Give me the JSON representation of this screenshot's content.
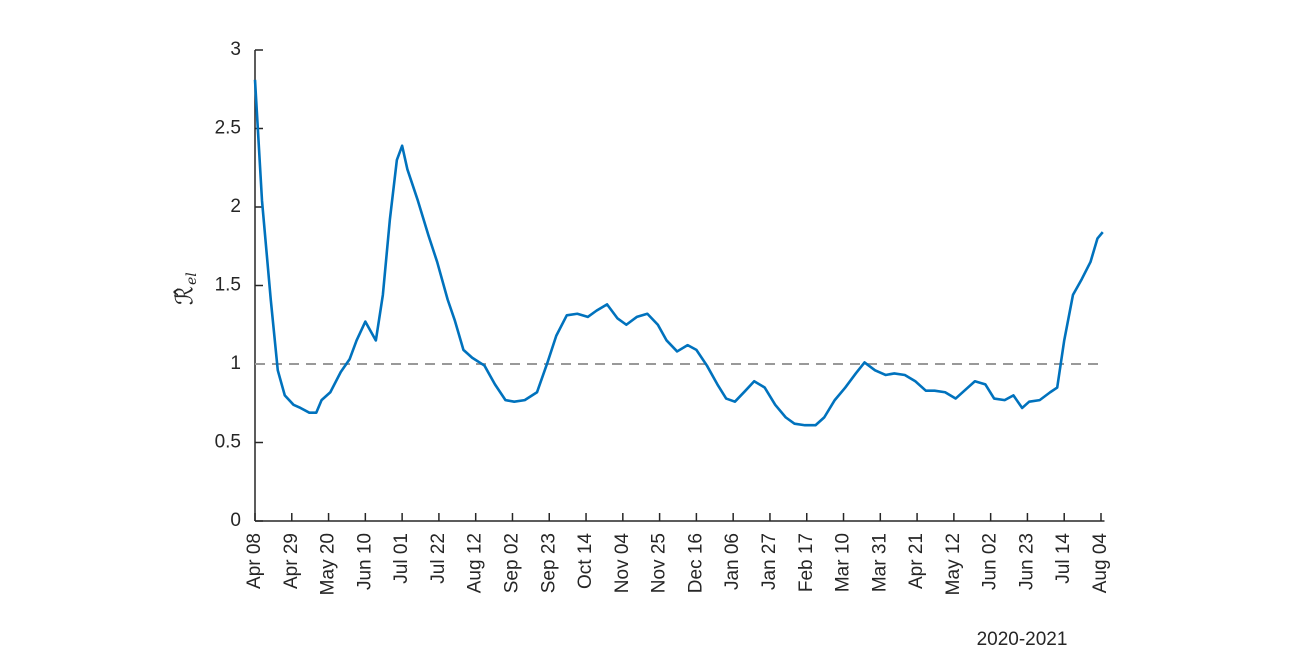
{
  "chart_data": {
    "type": "line",
    "ylabel": "ℛ̂",
    "ylabel_sub": "el",
    "xlabel": "2020-2021",
    "x": [
      0,
      4,
      9,
      13,
      17,
      22,
      26,
      31,
      35,
      38,
      43,
      49,
      54,
      58,
      63,
      69,
      73,
      77,
      81,
      84,
      87,
      93,
      99,
      104,
      110,
      114,
      119,
      124,
      131,
      137,
      143,
      148,
      154,
      161,
      167,
      172,
      178,
      184,
      190,
      195,
      201,
      207,
      212,
      218,
      224,
      230,
      235,
      241,
      247,
      252,
      258,
      264,
      269,
      274,
      280,
      285,
      291,
      297,
      303,
      308,
      314,
      320,
      325,
      331,
      337,
      343,
      348,
      354,
      360,
      365,
      371,
      377,
      383,
      388,
      394,
      400,
      405,
      411,
      417,
      422,
      428,
      433,
      438,
      442,
      448,
      454,
      458,
      462,
      467,
      472,
      477,
      481,
      484
    ],
    "series": [
      {
        "color": "#0072bd",
        "values": [
          2.81,
          2.04,
          1.41,
          0.96,
          0.8,
          0.74,
          0.72,
          0.69,
          0.69,
          0.77,
          0.82,
          0.95,
          1.03,
          1.15,
          1.27,
          1.15,
          1.44,
          1.92,
          2.3,
          2.39,
          2.24,
          2.04,
          1.82,
          1.65,
          1.41,
          1.28,
          1.09,
          1.04,
          0.99,
          0.87,
          0.77,
          0.76,
          0.77,
          0.82,
          1.01,
          1.18,
          1.31,
          1.32,
          1.3,
          1.34,
          1.38,
          1.29,
          1.25,
          1.3,
          1.32,
          1.25,
          1.15,
          1.08,
          1.12,
          1.09,
          0.99,
          0.87,
          0.78,
          0.76,
          0.83,
          0.89,
          0.85,
          0.74,
          0.66,
          0.62,
          0.61,
          0.61,
          0.66,
          0.77,
          0.85,
          0.94,
          1.01,
          0.96,
          0.93,
          0.94,
          0.93,
          0.89,
          0.83,
          0.83,
          0.82,
          0.78,
          0.83,
          0.89,
          0.87,
          0.78,
          0.77,
          0.8,
          0.72,
          0.76,
          0.77,
          0.82,
          0.85,
          1.15,
          1.44,
          1.54,
          1.65,
          1.8,
          1.84
        ]
      }
    ],
    "hline": 1,
    "hline_color": "#999999",
    "xlim": [
      0,
      485
    ],
    "xticks": [
      {
        "value": 0,
        "label": "Apr 08"
      },
      {
        "value": 21,
        "label": "Apr 29"
      },
      {
        "value": 42,
        "label": "May 20"
      },
      {
        "value": 63,
        "label": "Jun 10"
      },
      {
        "value": 84,
        "label": "Jul 01"
      },
      {
        "value": 105,
        "label": "Jul 22"
      },
      {
        "value": 126,
        "label": "Aug 12"
      },
      {
        "value": 147,
        "label": "Sep 02"
      },
      {
        "value": 168,
        "label": "Sep 23"
      },
      {
        "value": 189,
        "label": "Oct 14"
      },
      {
        "value": 210,
        "label": "Nov 04"
      },
      {
        "value": 231,
        "label": "Nov 25"
      },
      {
        "value": 252,
        "label": "Dec 16"
      },
      {
        "value": 273,
        "label": "Jan 06"
      },
      {
        "value": 294,
        "label": "Jan 27"
      },
      {
        "value": 315,
        "label": "Feb 17"
      },
      {
        "value": 336,
        "label": "Mar 10"
      },
      {
        "value": 357,
        "label": "Mar 31"
      },
      {
        "value": 378,
        "label": "Apr 21"
      },
      {
        "value": 399,
        "label": "May 12"
      },
      {
        "value": 420,
        "label": "Jun 02"
      },
      {
        "value": 441,
        "label": "Jun 23"
      },
      {
        "value": 462,
        "label": "Jul 14"
      },
      {
        "value": 483,
        "label": "Aug 04"
      }
    ],
    "ylim": [
      0,
      3
    ],
    "yticks": [
      0,
      0.5,
      1,
      1.5,
      2,
      2.5,
      3
    ]
  }
}
